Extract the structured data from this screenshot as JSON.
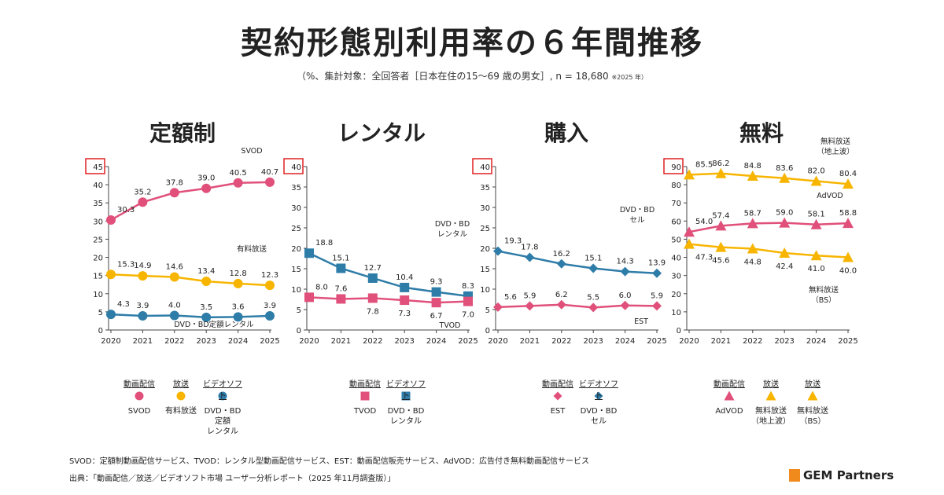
{
  "title": "契約形態別利用率の６年間推移",
  "subtitle": "（%、集計対象：全回答者［日本在住の15～69 歳の男女］, n = 18,680",
  "subtitle_note": "※2025 年）",
  "colors": {
    "pink": "#e0507a",
    "yellow": "#f7b500",
    "blue": "#2e7ca8",
    "highlight": "#e02020"
  },
  "chart_data": [
    {
      "type": "line",
      "title": "定額制",
      "categories": [
        "2020",
        "2021",
        "2022",
        "2023",
        "2024",
        "2025"
      ],
      "ylim": [
        0,
        45
      ],
      "yticks": [
        0,
        5,
        10,
        15,
        20,
        25,
        30,
        35,
        40,
        45
      ],
      "grid": false,
      "series": [
        {
          "name": "SVOD",
          "marker": "circle",
          "color": "pink",
          "values": [
            30.3,
            35.2,
            37.8,
            39.0,
            40.5,
            40.7
          ]
        },
        {
          "name": "有料放送",
          "marker": "circle",
          "color": "yellow",
          "values": [
            15.3,
            14.9,
            14.6,
            13.4,
            12.8,
            12.3
          ]
        },
        {
          "name": "DVD・BD定額レンタル",
          "marker": "circle",
          "color": "blue",
          "values": [
            4.3,
            3.9,
            4.0,
            3.5,
            3.6,
            3.9
          ]
        }
      ],
      "legend": [
        {
          "category": "動画配信",
          "label": "SVOD",
          "marker": "circle",
          "color": "pink"
        },
        {
          "category": "放送",
          "label": "有料放送",
          "marker": "circle",
          "color": "yellow"
        },
        {
          "category": "ビデオソフト",
          "label": "DVD・BD\n定額\nレンタル",
          "marker": "circle",
          "color": "blue"
        }
      ]
    },
    {
      "type": "line",
      "title": "レンタル",
      "categories": [
        "2020",
        "2021",
        "2022",
        "2023",
        "2024",
        "2025"
      ],
      "ylim": [
        0,
        40
      ],
      "yticks": [
        0,
        5,
        10,
        15,
        20,
        25,
        30,
        35,
        40
      ],
      "grid": false,
      "series": [
        {
          "name": "DVD・BD\nレンタル",
          "marker": "square",
          "color": "blue",
          "values": [
            18.8,
            15.1,
            12.7,
            10.4,
            9.3,
            8.3
          ]
        },
        {
          "name": "TVOD",
          "marker": "square",
          "color": "pink",
          "values": [
            8.0,
            7.6,
            7.8,
            7.3,
            6.7,
            7.0
          ]
        }
      ],
      "legend": [
        {
          "category": "動画配信",
          "label": "TVOD",
          "marker": "square",
          "color": "pink"
        },
        {
          "category": "ビデオソフト",
          "label": "DVD・BD\nレンタル",
          "marker": "square",
          "color": "blue"
        }
      ]
    },
    {
      "type": "line",
      "title": "購入",
      "categories": [
        "2020",
        "2021",
        "2022",
        "2023",
        "2024",
        "2025"
      ],
      "ylim": [
        0,
        40
      ],
      "yticks": [
        0,
        5,
        10,
        15,
        20,
        25,
        30,
        35,
        40
      ],
      "grid": false,
      "series": [
        {
          "name": "DVD・BD\nセル",
          "marker": "diamond",
          "color": "blue",
          "values": [
            19.3,
            17.8,
            16.2,
            15.1,
            14.3,
            13.9
          ]
        },
        {
          "name": "EST",
          "marker": "diamond",
          "color": "pink",
          "values": [
            5.6,
            5.9,
            6.2,
            5.5,
            6.0,
            5.9
          ]
        }
      ],
      "legend": [
        {
          "category": "動画配信",
          "label": "EST",
          "marker": "diamond",
          "color": "pink"
        },
        {
          "category": "ビデオソフト",
          "label": "DVD・BD\nセル",
          "marker": "diamond",
          "color": "blue"
        }
      ]
    },
    {
      "type": "line",
      "title": "無料",
      "categories": [
        "2020",
        "2021",
        "2022",
        "2023",
        "2024",
        "2025"
      ],
      "ylim": [
        0,
        90
      ],
      "yticks": [
        0,
        10,
        20,
        30,
        40,
        50,
        60,
        70,
        80,
        90
      ],
      "grid": false,
      "series": [
        {
          "name": "無料放送\n（地上波）",
          "marker": "triangle",
          "color": "yellow",
          "values": [
            85.5,
            86.2,
            84.8,
            83.6,
            82.0,
            80.4
          ]
        },
        {
          "name": "AdVOD",
          "marker": "triangle",
          "color": "pink",
          "values": [
            54.0,
            57.4,
            58.7,
            59.0,
            58.1,
            58.8
          ]
        },
        {
          "name": "無料放送\n（BS）",
          "marker": "triangle",
          "color": "yellow",
          "values": [
            47.3,
            45.6,
            44.8,
            42.4,
            41.0,
            40.0
          ]
        }
      ],
      "legend": [
        {
          "category": "動画配信",
          "label": "AdVOD",
          "marker": "triangle",
          "color": "pink"
        },
        {
          "category": "放送",
          "label": "無料放送\n（地上波）",
          "marker": "triangle",
          "color": "yellow"
        },
        {
          "category": "放送",
          "label": "無料放送\n（BS）",
          "marker": "triangle",
          "color": "yellow"
        }
      ]
    }
  ],
  "footnotes": {
    "definitions": "SVOD：定額制動画配信サービス、TVOD：レンタル型動画配信サービス、EST：動画配信販売サービス、AdVOD：広告付き無料動画配信サービス",
    "source": "出典：「動画配信／放送／ビデオソフト市場 ユーザー分析レポート（2025 年11月調査版）」"
  },
  "logo": "GEM Partners"
}
